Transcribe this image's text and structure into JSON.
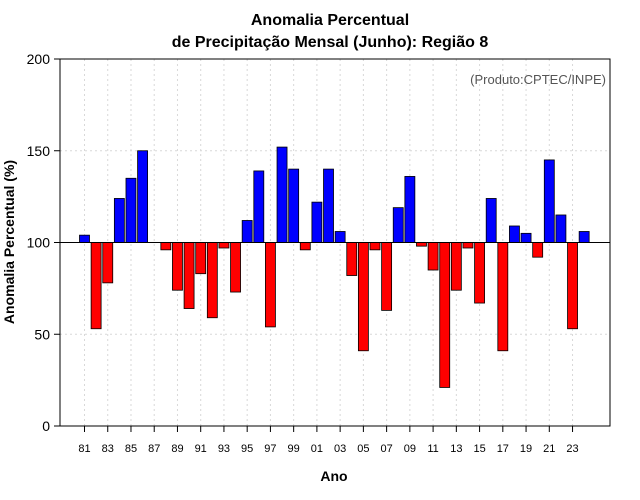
{
  "chart_data": {
    "type": "bar",
    "title_line1": "Anomalia Percentual",
    "title_line2": "de Precipitação Mensal (Junho): Região 8",
    "xlabel": "Ano",
    "ylabel": "Anomalia Percentual (%)",
    "credit": "(Produto:CPTEC/INPE)",
    "baseline": 100,
    "ylim": [
      0,
      200
    ],
    "yticks": [
      0,
      50,
      100,
      150,
      200
    ],
    "grid": true,
    "categories": [
      "81",
      "82",
      "83",
      "84",
      "85",
      "86",
      "87",
      "88",
      "89",
      "90",
      "91",
      "92",
      "93",
      "94",
      "95",
      "96",
      "97",
      "98",
      "99",
      "00",
      "01",
      "02",
      "03",
      "04",
      "05",
      "06",
      "07",
      "08",
      "09",
      "10",
      "11",
      "12",
      "13",
      "14",
      "15",
      "16",
      "17",
      "18",
      "19",
      "20",
      "21",
      "22",
      "23",
      "24"
    ],
    "xtick_labels": [
      "81",
      "83",
      "85",
      "87",
      "89",
      "91",
      "93",
      "95",
      "97",
      "99",
      "01",
      "03",
      "05",
      "07",
      "09",
      "11",
      "13",
      "15",
      "17",
      "19",
      "21",
      "23"
    ],
    "values": [
      104,
      53,
      78,
      124,
      135,
      150,
      100,
      96,
      74,
      64,
      83,
      59,
      97,
      73,
      112,
      139,
      54,
      152,
      140,
      96,
      122,
      140,
      106,
      82,
      41,
      96,
      63,
      119,
      136,
      98,
      85,
      21,
      74,
      97,
      67,
      124,
      41,
      109,
      105,
      92,
      145,
      115,
      53,
      106
    ],
    "colors": {
      "positive": "#0000ff",
      "negative": "#ff0000"
    }
  }
}
